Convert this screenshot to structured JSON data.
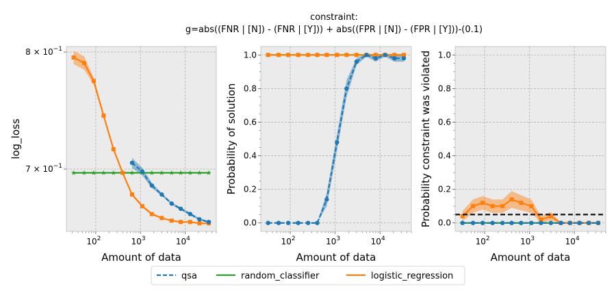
{
  "suptitle_lines": [
    "constraint:",
    "g=abs((FNR | [N]) - (FNR | [Y])) + abs((FPR | [N]) - (FPR | [Y]))-(0.1)"
  ],
  "legend": {
    "placement": "bottom-center",
    "entries": [
      {
        "label": "qsa",
        "color": "#1f77b4",
        "style": "dashed"
      },
      {
        "label": "random_classifier",
        "color": "#2ca02c",
        "style": "solid"
      },
      {
        "label": "logistic_regression",
        "color": "#ff7f0e",
        "style": "solid"
      }
    ]
  },
  "colors": {
    "qsa": "#1f77b4",
    "random_classifier": "#2ca02c",
    "logistic_regression": "#ff7f0e",
    "panel_bg": "#ebebeb",
    "grid": "#b0b0b0"
  },
  "chart_data": [
    {
      "type": "line",
      "xscale": "log",
      "yscale": "log",
      "grid": true,
      "xlabel": "Amount of data",
      "ylabel": "log_loss",
      "xlim": [
        22,
        50000
      ],
      "ylim": [
        0.652,
        0.805
      ],
      "xticks": [
        100,
        1000,
        10000
      ],
      "xtick_labels": [
        [
          "10",
          "2"
        ],
        [
          "10",
          "3"
        ],
        [
          "10",
          "4"
        ]
      ],
      "yticks": [
        0.7,
        0.8
      ],
      "ytick_labels": [
        [
          "7 × 10",
          "−1"
        ],
        [
          "8 × 10",
          "−1"
        ]
      ],
      "series": [
        {
          "name": "random_classifier",
          "marker": "star",
          "x": [
            32,
            55,
            90,
            150,
            250,
            400,
            650,
            1100,
            1800,
            3000,
            5000,
            8000,
            13000,
            21000,
            34000
          ],
          "y": [
            0.697,
            0.697,
            0.697,
            0.697,
            0.697,
            0.697,
            0.697,
            0.697,
            0.697,
            0.697,
            0.697,
            0.697,
            0.697,
            0.697,
            0.697
          ],
          "band": [
            0,
            0,
            0,
            0,
            0,
            0,
            0,
            0,
            0,
            0,
            0,
            0,
            0,
            0,
            0
          ]
        },
        {
          "name": "logistic_regression",
          "marker": "square",
          "x": [
            32,
            55,
            90,
            150,
            250,
            400,
            650,
            1100,
            1800,
            3000,
            5000,
            8000,
            13000,
            21000,
            34000
          ],
          "y": [
            0.795,
            0.79,
            0.774,
            0.744,
            0.716,
            0.697,
            0.68,
            0.671,
            0.665,
            0.662,
            0.66,
            0.659,
            0.659,
            0.658,
            0.658
          ],
          "band": [
            0.006,
            0.006,
            0.003,
            0.002,
            0.001,
            0.001,
            0.001,
            0.001,
            0.001,
            0.0005,
            0.0005,
            0.0005,
            0.0005,
            0.0005,
            0.0005
          ]
        },
        {
          "name": "qsa",
          "marker": "circle",
          "linestyle": "dashed",
          "x": [
            650,
            1100,
            1800,
            3000,
            5000,
            8000,
            13000,
            21000,
            34000
          ],
          "y": [
            0.705,
            0.698,
            0.687,
            0.68,
            0.673,
            0.669,
            0.665,
            0.661,
            0.659
          ],
          "band": [
            0.004,
            0.003,
            0.002,
            0.001,
            0.001,
            0.001,
            0.001,
            0.0008,
            0.0008
          ]
        }
      ]
    },
    {
      "type": "line",
      "xscale": "log",
      "yscale": "linear",
      "grid": true,
      "xlabel": "Amount of data",
      "ylabel": "Probability of solution",
      "xlim": [
        22,
        50000
      ],
      "ylim": [
        -0.05,
        1.05
      ],
      "xticks": [
        100,
        1000,
        10000
      ],
      "xtick_labels": [
        [
          "10",
          "2"
        ],
        [
          "10",
          "3"
        ],
        [
          "10",
          "4"
        ]
      ],
      "yticks": [
        0.0,
        0.2,
        0.4,
        0.6,
        0.8,
        1.0
      ],
      "ytick_labels": [
        "0.0",
        "0.2",
        "0.4",
        "0.6",
        "0.8",
        "1.0"
      ],
      "series": [
        {
          "name": "random_classifier",
          "marker": "star",
          "x": [
            32,
            55,
            90,
            150,
            250,
            400,
            650,
            1100,
            1800,
            3000,
            5000,
            8000,
            13000,
            21000,
            34000
          ],
          "y": [
            1,
            1,
            1,
            1,
            1,
            1,
            1,
            1,
            1,
            1,
            1,
            1,
            1,
            1,
            1
          ],
          "band": [
            0,
            0,
            0,
            0,
            0,
            0,
            0,
            0,
            0,
            0,
            0,
            0,
            0,
            0,
            0
          ]
        },
        {
          "name": "logistic_regression",
          "marker": "square",
          "x": [
            32,
            55,
            90,
            150,
            250,
            400,
            650,
            1100,
            1800,
            3000,
            5000,
            8000,
            13000,
            21000,
            34000
          ],
          "y": [
            1,
            1,
            1,
            1,
            1,
            1,
            1,
            1,
            1,
            1,
            1,
            1,
            1,
            1,
            1
          ],
          "band": [
            0,
            0,
            0,
            0,
            0,
            0,
            0,
            0,
            0,
            0,
            0,
            0,
            0,
            0,
            0
          ]
        },
        {
          "name": "qsa",
          "marker": "circle",
          "linestyle": "dashed",
          "x": [
            32,
            55,
            90,
            150,
            250,
            400,
            650,
            1100,
            1800,
            3000,
            5000,
            8000,
            13000,
            21000,
            34000
          ],
          "y": [
            0,
            0,
            0,
            0,
            0,
            0,
            0.14,
            0.48,
            0.8,
            0.96,
            1.0,
            0.98,
            1.0,
            0.98,
            0.98
          ],
          "band": [
            0,
            0,
            0,
            0,
            0,
            0,
            0.04,
            0.05,
            0.05,
            0.02,
            0.01,
            0.02,
            0.01,
            0.02,
            0.02
          ]
        }
      ]
    },
    {
      "type": "line",
      "xscale": "log",
      "yscale": "linear",
      "grid": true,
      "xlabel": "Amount of data",
      "ylabel": "Probability constraint was violated",
      "xlim": [
        22,
        50000
      ],
      "ylim": [
        -0.05,
        1.05
      ],
      "xticks": [
        100,
        1000,
        10000
      ],
      "xtick_labels": [
        [
          "10",
          "2"
        ],
        [
          "10",
          "3"
        ],
        [
          "10",
          "4"
        ]
      ],
      "yticks": [
        0.0,
        0.2,
        0.4,
        0.6,
        0.8,
        1.0
      ],
      "ytick_labels": [
        "0.0",
        "0.2",
        "0.4",
        "0.6",
        "0.8",
        "1.0"
      ],
      "reference_line": {
        "y": 0.05,
        "style": "dashed",
        "color": "#000000"
      },
      "series": [
        {
          "name": "random_classifier",
          "marker": "star",
          "x": [
            32,
            55,
            90,
            150,
            250,
            400,
            650,
            1100,
            1800,
            3000,
            5000,
            8000,
            13000,
            21000,
            34000
          ],
          "y": [
            0,
            0,
            0,
            0,
            0,
            0,
            0,
            0,
            0,
            0,
            0,
            0,
            0,
            0,
            0
          ],
          "band": [
            0,
            0,
            0,
            0,
            0,
            0,
            0,
            0,
            0,
            0,
            0,
            0,
            0,
            0,
            0
          ]
        },
        {
          "name": "logistic_regression",
          "marker": "square",
          "x": [
            32,
            55,
            90,
            150,
            250,
            400,
            650,
            1100,
            1800,
            3000,
            5000,
            8000,
            13000,
            21000,
            34000
          ],
          "y": [
            0.04,
            0.1,
            0.12,
            0.1,
            0.1,
            0.14,
            0.12,
            0.1,
            0.02,
            0.04,
            0.0,
            0.0,
            0.0,
            0.0,
            0.0
          ],
          "band": [
            0.03,
            0.04,
            0.04,
            0.04,
            0.04,
            0.05,
            0.045,
            0.04,
            0.02,
            0.025,
            0,
            0,
            0,
            0,
            0
          ]
        },
        {
          "name": "qsa",
          "marker": "circle",
          "linestyle": "dashed",
          "x": [
            32,
            55,
            90,
            150,
            250,
            400,
            650,
            1100,
            1800,
            3000,
            5000,
            8000,
            13000,
            21000,
            34000
          ],
          "y": [
            0,
            0,
            0,
            0,
            0,
            0,
            0,
            0,
            0,
            0,
            0,
            0,
            0,
            0,
            0
          ],
          "band": [
            0,
            0,
            0,
            0,
            0,
            0,
            0,
            0,
            0,
            0,
            0,
            0,
            0,
            0,
            0
          ]
        }
      ]
    }
  ]
}
